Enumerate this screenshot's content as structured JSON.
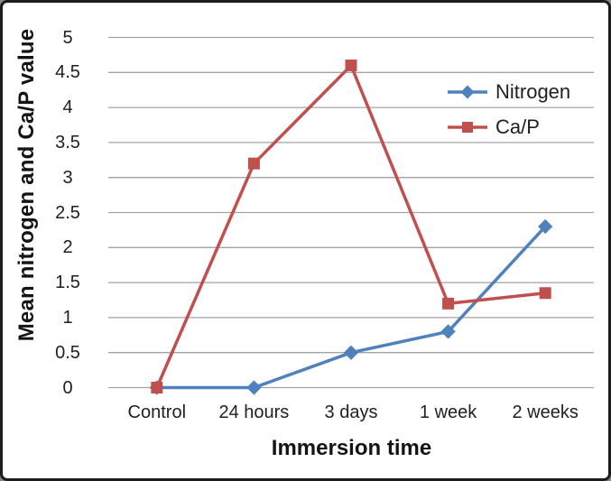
{
  "figure": {
    "background": "#ffffff",
    "border_color": "#1c1c1c",
    "text_color": "#1f1f1f"
  },
  "chart_data": {
    "type": "line",
    "categories": [
      "Control",
      "24 hours",
      "3 days",
      "1 week",
      "2 weeks"
    ],
    "series": [
      {
        "name": "Nitrogen",
        "values": [
          0,
          0,
          0.5,
          0.8,
          2.3
        ],
        "color": "#4F81BD",
        "marker": "diamond"
      },
      {
        "name": "Ca/P",
        "values": [
          0,
          3.2,
          4.6,
          1.2,
          1.35
        ],
        "color": "#C0504D",
        "marker": "square"
      }
    ],
    "xlabel": "Immersion time",
    "ylabel": "Mean nitrogen and Ca/P value",
    "ylim": [
      0,
      5
    ],
    "ytick_step": 0.5,
    "ytick_labels": [
      "0",
      "0.5",
      "1",
      "1.5",
      "2",
      "2.5",
      "3",
      "3.5",
      "4",
      "4.5",
      "5"
    ],
    "grid": true,
    "gridline_color": "#a3a3a3",
    "legend_position": "inside-upper-right",
    "line_width": 3.5
  }
}
